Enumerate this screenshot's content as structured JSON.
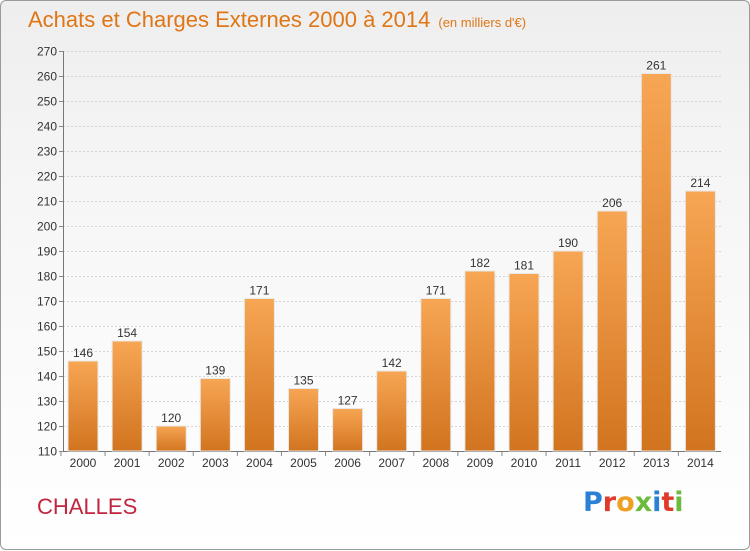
{
  "header": {
    "title": "Achats et Charges Externes 2000 à 2014",
    "subtitle": "(en milliers d'€)"
  },
  "place_name": "CHALLES",
  "logo_text": "Proxiti",
  "colors": {
    "title": "#e07515",
    "place": "#c0263e",
    "bar_light": "#f7a654",
    "bar_dark": "#d2741f",
    "logo": [
      "#2a7fd6",
      "#e03a2a",
      "#f0a020",
      "#6cbb3c",
      "#2a7fd6",
      "#e03a2a",
      "#6cbb3c"
    ]
  },
  "chart_data": {
    "type": "bar",
    "categories": [
      "2000",
      "2001",
      "2002",
      "2003",
      "2004",
      "2005",
      "2006",
      "2007",
      "2008",
      "2009",
      "2010",
      "2011",
      "2012",
      "2013",
      "2014"
    ],
    "values": [
      146,
      154,
      120,
      139,
      171,
      135,
      127,
      142,
      171,
      182,
      181,
      190,
      206,
      261,
      214
    ],
    "ylim": [
      110,
      270
    ],
    "yticks": [
      110,
      120,
      130,
      140,
      150,
      160,
      170,
      180,
      190,
      200,
      210,
      220,
      230,
      240,
      250,
      260,
      270
    ],
    "xlabel": "",
    "ylabel": "",
    "grid": true,
    "legend": "none"
  }
}
